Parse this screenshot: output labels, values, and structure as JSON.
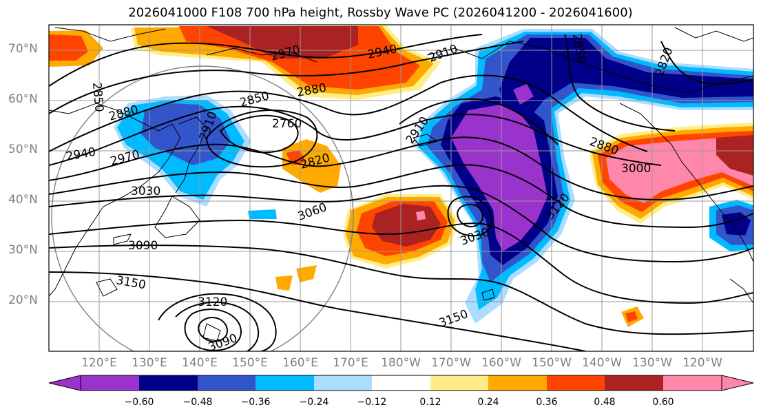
{
  "title": "2026041000 F108 700 hPa height, Rossby Wave PC (2026041200 - 2026041600)",
  "lat_labels": [
    "70°N",
    "60°N",
    "50°N",
    "40°N",
    "30°N",
    "20°N"
  ],
  "lon_labels": [
    "120°E",
    "130°E",
    "140°E",
    "150°E",
    "160°E",
    "170°E",
    "180°W",
    "170°W",
    "160°W",
    "150°W",
    "140°W",
    "130°W",
    "120°W"
  ],
  "contour_labels": [
    "2970",
    "2940",
    "2910",
    "2850",
    "2880",
    "2850",
    "2760",
    "2880",
    "2820",
    "2940",
    "2970",
    "3030",
    "3060",
    "3090",
    "3150",
    "3120",
    "3090",
    "3030",
    "3120",
    "3150",
    "2880",
    "3000",
    "2910",
    "2820",
    "2850",
    "2910"
  ],
  "colorbar": {
    "ticks": [
      "−0.60",
      "−0.48",
      "−0.36",
      "−0.24",
      "−0.12",
      "0.12",
      "0.24",
      "0.36",
      "0.48",
      "0.60"
    ],
    "colors": [
      "#9933CC",
      "#000088",
      "#3355CC",
      "#00BBFF",
      "#AADDFF",
      "#FFFFFF",
      "#FFEE88",
      "#FFAA00",
      "#FF4400",
      "#AA2222",
      "#FF88AA"
    ]
  }
}
